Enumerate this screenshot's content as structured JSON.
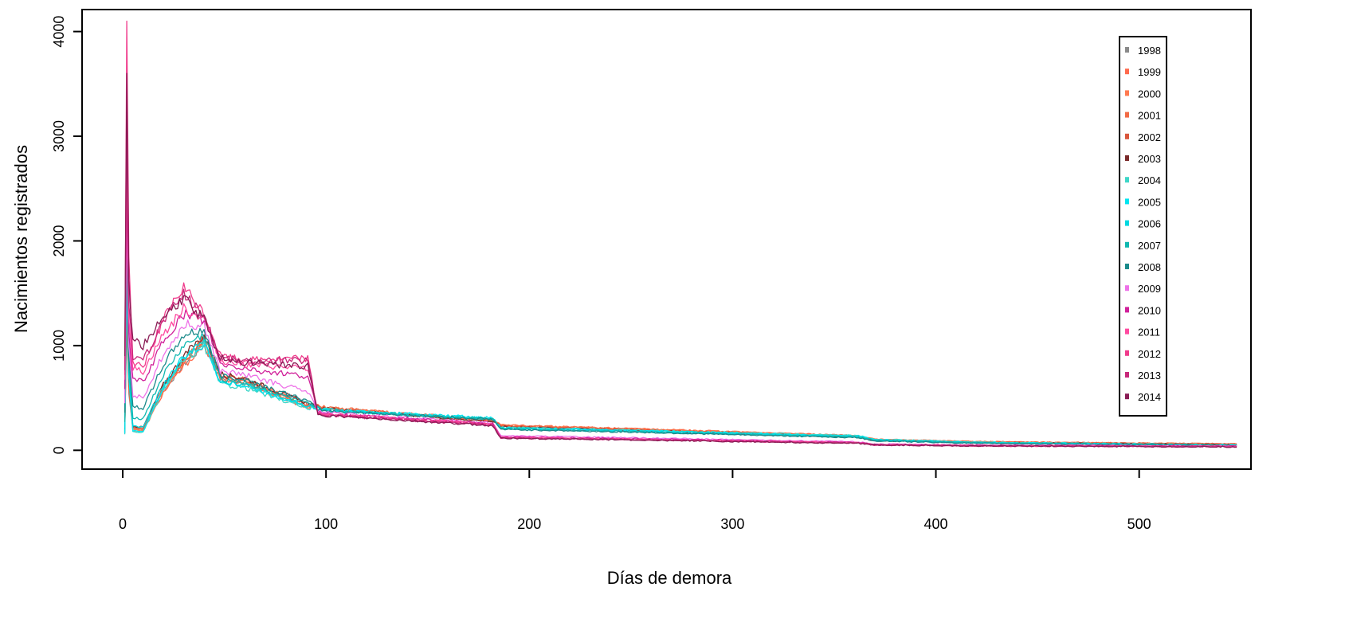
{
  "chart_data": {
    "type": "line",
    "title": "",
    "xlabel": "Días de demora",
    "ylabel": "Nacimientos registrados",
    "xlim": [
      -20,
      555
    ],
    "ylim": [
      -180,
      4210
    ],
    "x_ticks": [
      0,
      100,
      200,
      300,
      400,
      500
    ],
    "y_ticks": [
      0,
      1000,
      2000,
      3000,
      4000
    ],
    "x_tick_labels": [
      "0",
      "100",
      "200",
      "300",
      "400",
      "500"
    ],
    "y_tick_labels": [
      "0",
      "1000",
      "2000",
      "3000",
      "4000"
    ],
    "x_max": 548,
    "grid": false,
    "legend_position": "top-right",
    "series": [
      {
        "name": "1998",
        "color": "#8a8a8a",
        "spike": 1200,
        "min_early": 200,
        "peak30": 820,
        "peak40": 1000,
        "hump60": 650,
        "hump90": 420,
        "mid100": 400,
        "mid180": 280,
        "mid200": 230,
        "tail365": 130,
        "tail548": 55
      },
      {
        "name": "1999",
        "color": "#ff6a4d",
        "spike": 1300,
        "min_early": 180,
        "peak30": 800,
        "peak40": 1020,
        "hump60": 640,
        "hump90": 410,
        "mid100": 400,
        "mid180": 290,
        "mid200": 240,
        "tail365": 140,
        "tail548": 60
      },
      {
        "name": "2000",
        "color": "#ff7a50",
        "spike": 1350,
        "min_early": 190,
        "peak30": 830,
        "peak40": 1050,
        "hump60": 660,
        "hump90": 420,
        "mid100": 410,
        "mid180": 290,
        "mid200": 240,
        "tail365": 140,
        "tail548": 60
      },
      {
        "name": "2001",
        "color": "#f26b45",
        "spike": 1400,
        "min_early": 200,
        "peak30": 850,
        "peak40": 1060,
        "hump60": 670,
        "hump90": 430,
        "mid100": 410,
        "mid180": 285,
        "mid200": 235,
        "tail365": 135,
        "tail548": 58
      },
      {
        "name": "2002",
        "color": "#d9563c",
        "spike": 1450,
        "min_early": 210,
        "peak30": 870,
        "peak40": 1080,
        "hump60": 680,
        "hump90": 440,
        "mid100": 400,
        "mid180": 280,
        "mid200": 230,
        "tail365": 130,
        "tail548": 56
      },
      {
        "name": "2003",
        "color": "#7a2a2a",
        "spike": 1500,
        "min_early": 220,
        "peak30": 900,
        "peak40": 1100,
        "hump60": 690,
        "hump90": 450,
        "mid100": 395,
        "mid180": 275,
        "mid200": 225,
        "tail365": 125,
        "tail548": 54
      },
      {
        "name": "2004",
        "color": "#3ed6c8",
        "spike": 1550,
        "min_early": 170,
        "peak30": 850,
        "peak40": 1000,
        "hump60": 600,
        "hump90": 400,
        "mid100": 390,
        "mid180": 300,
        "mid200": 220,
        "tail365": 140,
        "tail548": 50
      },
      {
        "name": "2005",
        "color": "#00e5f0",
        "spike": 1600,
        "min_early": 180,
        "peak30": 880,
        "peak40": 1020,
        "hump60": 620,
        "hump90": 410,
        "mid100": 385,
        "mid180": 310,
        "mid200": 215,
        "tail365": 135,
        "tail548": 48
      },
      {
        "name": "2006",
        "color": "#00d8e0",
        "spike": 1700,
        "min_early": 220,
        "peak30": 900,
        "peak40": 1040,
        "hump60": 630,
        "hump90": 420,
        "mid100": 380,
        "mid180": 305,
        "mid200": 210,
        "tail365": 130,
        "tail548": 46
      },
      {
        "name": "2007",
        "color": "#10b8b0",
        "spike": 1800,
        "min_early": 300,
        "peak30": 1000,
        "peak40": 1100,
        "hump60": 650,
        "hump90": 440,
        "mid100": 380,
        "mid180": 300,
        "mid200": 205,
        "tail365": 125,
        "tail548": 45
      },
      {
        "name": "2008",
        "color": "#1a8a8a",
        "spike": 2000,
        "min_early": 400,
        "peak30": 1100,
        "peak40": 1150,
        "hump60": 680,
        "hump90": 470,
        "mid100": 375,
        "mid180": 295,
        "mid200": 200,
        "tail365": 120,
        "tail548": 44
      },
      {
        "name": "2009",
        "color": "#ee72e8",
        "spike": 2200,
        "min_early": 500,
        "peak30": 1200,
        "peak40": 1200,
        "hump60": 720,
        "hump90": 560,
        "mid100": 360,
        "mid180": 260,
        "mid200": 140,
        "tail365": 80,
        "tail548": 40
      },
      {
        "name": "2010",
        "color": "#d0209a",
        "spike": 2500,
        "min_early": 650,
        "peak30": 1300,
        "peak40": 1250,
        "hump60": 780,
        "hump90": 700,
        "mid100": 350,
        "mid180": 255,
        "mid200": 130,
        "tail365": 75,
        "tail548": 38
      },
      {
        "name": "2011",
        "color": "#ff4aa0",
        "spike": 2800,
        "min_early": 750,
        "peak30": 1350,
        "peak40": 1270,
        "hump60": 820,
        "hump90": 780,
        "mid100": 345,
        "mid180": 250,
        "mid200": 125,
        "tail365": 72,
        "tail548": 36
      },
      {
        "name": "2012",
        "color": "#f03c8c",
        "spike": 4100,
        "min_early": 800,
        "peak30": 1550,
        "peak40": 1300,
        "hump60": 860,
        "hump90": 880,
        "mid100": 340,
        "mid180": 245,
        "mid200": 120,
        "tail365": 70,
        "tail548": 35
      },
      {
        "name": "2013",
        "color": "#c8287a",
        "spike": 3100,
        "min_early": 850,
        "peak30": 1500,
        "peak40": 1280,
        "hump60": 850,
        "hump90": 860,
        "mid100": 335,
        "mid180": 240,
        "mid200": 118,
        "tail365": 68,
        "tail548": 34
      },
      {
        "name": "2014",
        "color": "#8a1c55",
        "spike": 3600,
        "min_early": 1000,
        "peak30": 1450,
        "peak40": 1250,
        "hump60": 840,
        "hump90": 800,
        "mid100": 330,
        "mid180": 235,
        "mid200": 115,
        "tail365": 66,
        "tail548": 33
      }
    ]
  }
}
